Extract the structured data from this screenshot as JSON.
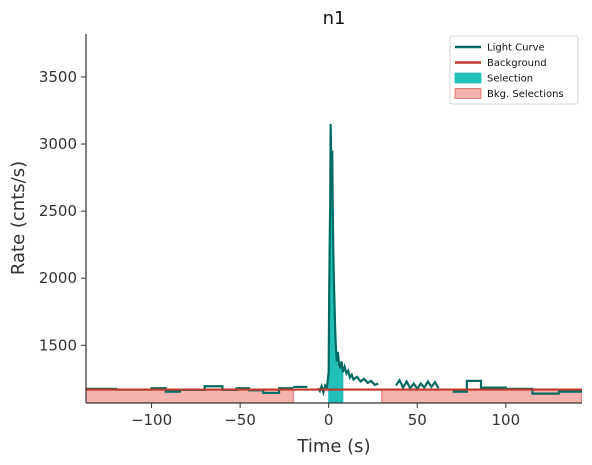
{
  "chart_data": {
    "type": "line",
    "title": "n1",
    "xlabel": "Time (s)",
    "ylabel": "Rate (cnts/s)",
    "xlim": [
      -137,
      143
    ],
    "ylim": [
      1070,
      3820
    ],
    "xticks": [
      -100,
      -50,
      0,
      50,
      100
    ],
    "xtick_labels": [
      "−100",
      "−50",
      "0",
      "50",
      "100"
    ],
    "yticks": [
      1500,
      2000,
      2500,
      3000,
      3500
    ],
    "ytick_labels": [
      "1500",
      "2000",
      "2500",
      "3000",
      "3500"
    ],
    "grid": false,
    "legend_position": "top-right",
    "colors": {
      "light_curve": "#006b63",
      "background": "#c0392b",
      "selection": "#20c0b8",
      "bkg_selection_fill": "#f4b3ad",
      "bkg_selection_edge": "#e06860"
    },
    "legend": [
      {
        "label": "Light Curve",
        "kind": "line",
        "color_key": "light_curve"
      },
      {
        "label": "Background",
        "kind": "line",
        "color_key": "background"
      },
      {
        "label": "Selection",
        "kind": "patch",
        "color_key": "selection"
      },
      {
        "label": "Bkg. Selections",
        "kind": "patch",
        "color_key": "bkg_selection_fill"
      }
    ],
    "background_rate": [
      [
        -137,
        1170
      ],
      [
        143,
        1170
      ]
    ],
    "bkg_selections": [
      [
        -137,
        -20
      ],
      [
        30,
        143
      ]
    ],
    "selection_interval": [
      0,
      8
    ],
    "light_curve_segments": [
      [
        [
          -137,
          1175
        ],
        [
          -120,
          1175
        ],
        [
          -120,
          1170
        ],
        [
          -100,
          1170
        ],
        [
          -100,
          1180
        ],
        [
          -92,
          1180
        ],
        [
          -92,
          1155
        ],
        [
          -84,
          1155
        ],
        [
          -84,
          1168
        ],
        [
          -70,
          1168
        ],
        [
          -70,
          1195
        ],
        [
          -60,
          1195
        ],
        [
          -60,
          1168
        ],
        [
          -52,
          1168
        ],
        [
          -52,
          1180
        ],
        [
          -45,
          1180
        ],
        [
          -45,
          1165
        ],
        [
          -37,
          1165
        ],
        [
          -37,
          1145
        ],
        [
          -28,
          1145
        ],
        [
          -28,
          1180
        ],
        [
          -20,
          1180
        ]
      ],
      [
        [
          -20,
          1190
        ],
        [
          -12,
          1190
        ]
      ],
      [
        [
          -6,
          1180
        ],
        [
          -5,
          1160
        ],
        [
          -4,
          1195
        ],
        [
          -3,
          1150
        ],
        [
          -2,
          1200
        ],
        [
          -1,
          1185
        ],
        [
          -0.5,
          1240
        ],
        [
          0,
          1300
        ],
        [
          0.3,
          1900
        ],
        [
          0.6,
          2280
        ],
        [
          0.9,
          2600
        ],
        [
          1.1,
          3150
        ],
        [
          1.4,
          2900
        ],
        [
          1.7,
          2650
        ],
        [
          2,
          2950
        ],
        [
          2.3,
          2500
        ],
        [
          2.6,
          2200
        ],
        [
          2.9,
          2000
        ],
        [
          3.2,
          1850
        ],
        [
          3.6,
          1650
        ],
        [
          4,
          1500
        ],
        [
          4.6,
          1380
        ],
        [
          5.2,
          1450
        ],
        [
          5.8,
          1360
        ],
        [
          6.5,
          1330
        ],
        [
          7.2,
          1380
        ],
        [
          8,
          1300
        ],
        [
          9,
          1340
        ],
        [
          10,
          1290
        ],
        [
          11,
          1310
        ],
        [
          12,
          1260
        ],
        [
          13,
          1280
        ],
        [
          14,
          1245
        ],
        [
          16,
          1265
        ],
        [
          18,
          1230
        ],
        [
          20,
          1250
        ],
        [
          22,
          1220
        ],
        [
          24,
          1235
        ],
        [
          26,
          1205
        ],
        [
          28,
          1215
        ]
      ],
      [
        [
          38,
          1200
        ],
        [
          40,
          1240
        ],
        [
          42,
          1185
        ],
        [
          44,
          1230
        ],
        [
          46,
          1180
        ],
        [
          48,
          1215
        ],
        [
          50,
          1175
        ],
        [
          52,
          1215
        ],
        [
          54,
          1185
        ],
        [
          56,
          1230
        ],
        [
          58,
          1190
        ],
        [
          60,
          1225
        ],
        [
          62,
          1180
        ]
      ],
      [
        [
          70,
          1155
        ],
        [
          78,
          1155
        ],
        [
          78,
          1235
        ],
        [
          86,
          1235
        ],
        [
          86,
          1185
        ],
        [
          100,
          1185
        ],
        [
          100,
          1175
        ],
        [
          115,
          1175
        ],
        [
          115,
          1140
        ],
        [
          130,
          1140
        ],
        [
          130,
          1155
        ],
        [
          143,
          1155
        ]
      ]
    ]
  }
}
